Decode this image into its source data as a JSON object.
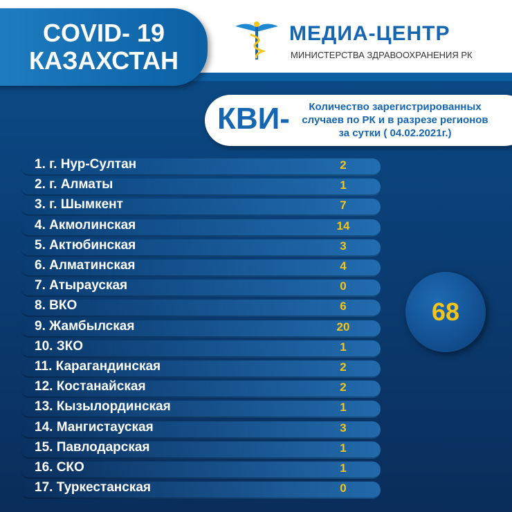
{
  "header": {
    "title": "COVID- 19",
    "subtitle": "КАЗАХСТАН"
  },
  "logo": {
    "name": "МЕДИА-ЦЕНТР",
    "ministry": "МИНИСТЕРСТВА ЗДРАВООХРАНЕНИЯ РК"
  },
  "summary": {
    "label": "КВИ-",
    "description": [
      "Количество зарегистрированных",
      "случаев по РК и в разрезе регионов",
      "за сутки ( 04.02.2021г.)"
    ]
  },
  "regions": [
    {
      "name": "1. г. Нур-Султан",
      "value": 2
    },
    {
      "name": "2. г. Алматы",
      "value": 1
    },
    {
      "name": "3. г. Шымкент",
      "value": 7
    },
    {
      "name": "4. Акмолинская",
      "value": 14
    },
    {
      "name": "5. Актюбинская",
      "value": 3
    },
    {
      "name": "6. Алматинская",
      "value": 4
    },
    {
      "name": "7. Атырауская",
      "value": 0
    },
    {
      "name": "8. ВКО",
      "value": 6
    },
    {
      "name": "9. Жамбылская",
      "value": 20
    },
    {
      "name": "10. ЗКО",
      "value": 1
    },
    {
      "name": "11. Карагандинская",
      "value": 2
    },
    {
      "name": "12. Костанайская",
      "value": 2
    },
    {
      "name": "13. Кызылординская",
      "value": 1
    },
    {
      "name": "14. Мангистауская",
      "value": 3
    },
    {
      "name": "15. Павлодарская",
      "value": 1
    },
    {
      "name": "16. СКО",
      "value": 1
    },
    {
      "name": "17. Туркестанская",
      "value": 0
    }
  ],
  "total": 68
}
